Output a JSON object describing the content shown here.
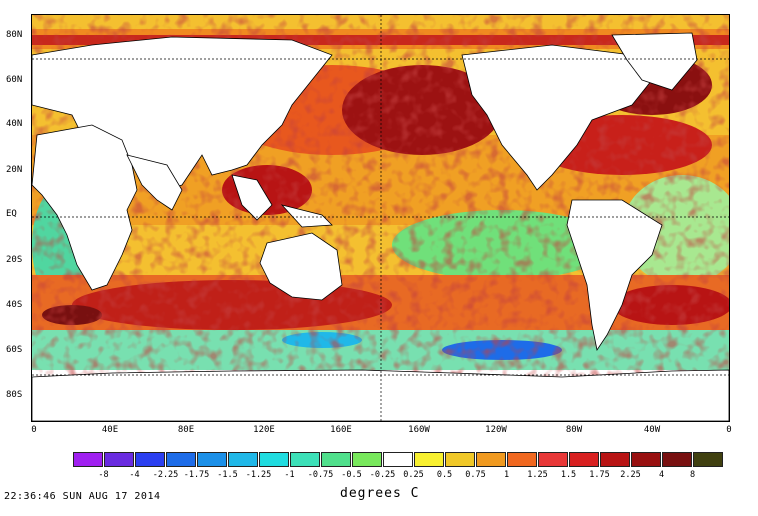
{
  "map": {
    "lat_labels": [
      "80N",
      "60N",
      "40N",
      "20N",
      "EQ",
      "20S",
      "40S",
      "60S",
      "80S"
    ],
    "lon_labels": [
      "0",
      "40E",
      "80E",
      "120E",
      "160E",
      "160W",
      "120W",
      "80W",
      "40W",
      "0"
    ]
  },
  "colorbar": {
    "labels": [
      "-8",
      "-4",
      "-2.25",
      "-1.75",
      "-1.5",
      "-1.25",
      "-1",
      "-0.75",
      "-0.5",
      "-0.25",
      "0.25",
      "0.5",
      "0.75",
      "1",
      "1.25",
      "1.5",
      "1.75",
      "2.25",
      "4",
      "8"
    ],
    "colors": [
      "#a020f0",
      "#6a2ce0",
      "#2b3ff0",
      "#1e6ce8",
      "#1c90e8",
      "#20b8e8",
      "#20dce0",
      "#3ce0b8",
      "#50e08c",
      "#78e85c",
      "#ffffff",
      "#f8f030",
      "#f0c828",
      "#f09a20",
      "#f06820",
      "#e83838",
      "#d82020",
      "#b81414",
      "#981010",
      "#781010",
      "#404010"
    ],
    "units": "degrees C"
  },
  "timestamp": "22:36:46  SUN AUG 17 2014"
}
